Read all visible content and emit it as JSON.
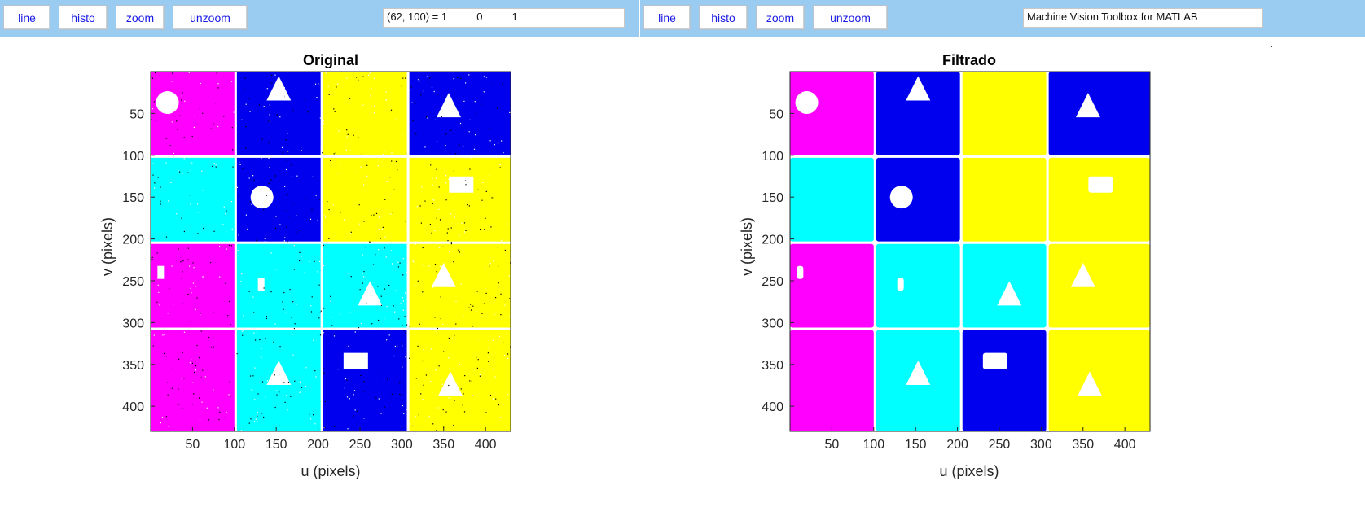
{
  "toolbar_left": {
    "buttons": [
      "line",
      "histo",
      "zoom",
      "unzoom"
    ],
    "readout": "(62, 100) = 1          0          1"
  },
  "toolbar_right": {
    "buttons": [
      "line",
      "histo",
      "zoom",
      "unzoom"
    ],
    "readout": "Machine Vision Toolbox for MATLAB"
  },
  "colors": {
    "toolbar": "#99ccf0",
    "button_text": "#1a1ae6",
    "magenta": "#ff00ff",
    "blue": "#0000ee",
    "yellow": "#ffff00",
    "cyan": "#00ffff",
    "white": "#ffffff"
  },
  "panels": [
    {
      "title": "Original",
      "xlabel": "u (pixels)",
      "ylabel": "v (pixels)",
      "noise": true
    },
    {
      "title": "Filtrado",
      "xlabel": "u (pixels)",
      "ylabel": "v (pixels)",
      "noise": false
    }
  ],
  "image": {
    "width": 430,
    "height": 430,
    "xticks": [
      50,
      100,
      150,
      200,
      250,
      300,
      350,
      400
    ],
    "yticks": [
      50,
      100,
      150,
      200,
      250,
      300,
      350,
      400
    ],
    "squares": [
      {
        "col": 0,
        "row": 0,
        "color": "magenta"
      },
      {
        "col": 1,
        "row": 0,
        "color": "blue"
      },
      {
        "col": 2,
        "row": 0,
        "color": "yellow"
      },
      {
        "col": 3,
        "row": 0,
        "color": "blue"
      },
      {
        "col": 0,
        "row": 1,
        "color": "cyan"
      },
      {
        "col": 1,
        "row": 1,
        "color": "blue"
      },
      {
        "col": 2,
        "row": 1,
        "color": "yellow"
      },
      {
        "col": 3,
        "row": 1,
        "color": "yellow"
      },
      {
        "col": 0,
        "row": 2,
        "color": "magenta"
      },
      {
        "col": 1,
        "row": 2,
        "color": "cyan"
      },
      {
        "col": 2,
        "row": 2,
        "color": "cyan"
      },
      {
        "col": 3,
        "row": 2,
        "color": "yellow"
      },
      {
        "col": 0,
        "row": 3,
        "color": "magenta"
      },
      {
        "col": 1,
        "row": 3,
        "color": "cyan"
      },
      {
        "col": 2,
        "row": 3,
        "color": "blue"
      },
      {
        "col": 3,
        "row": 3,
        "color": "yellow"
      }
    ],
    "shapes": [
      {
        "type": "circle",
        "u": 20,
        "v": 37
      },
      {
        "type": "triangle",
        "u": 153,
        "v": 20
      },
      {
        "type": "triangle",
        "u": 356,
        "v": 40
      },
      {
        "type": "circle",
        "u": 133,
        "v": 150
      },
      {
        "type": "rectangle",
        "u": 371,
        "v": 135
      },
      {
        "type": "rectangle",
        "u": 12,
        "v": 240
      },
      {
        "type": "rectangle",
        "u": 132,
        "v": 254
      },
      {
        "type": "triangle",
        "u": 262,
        "v": 265
      },
      {
        "type": "triangle",
        "u": 350,
        "v": 243
      },
      {
        "type": "triangle",
        "u": 153,
        "v": 360
      },
      {
        "type": "rectangle",
        "u": 245,
        "v": 346
      },
      {
        "type": "triangle",
        "u": 358,
        "v": 373
      }
    ]
  }
}
